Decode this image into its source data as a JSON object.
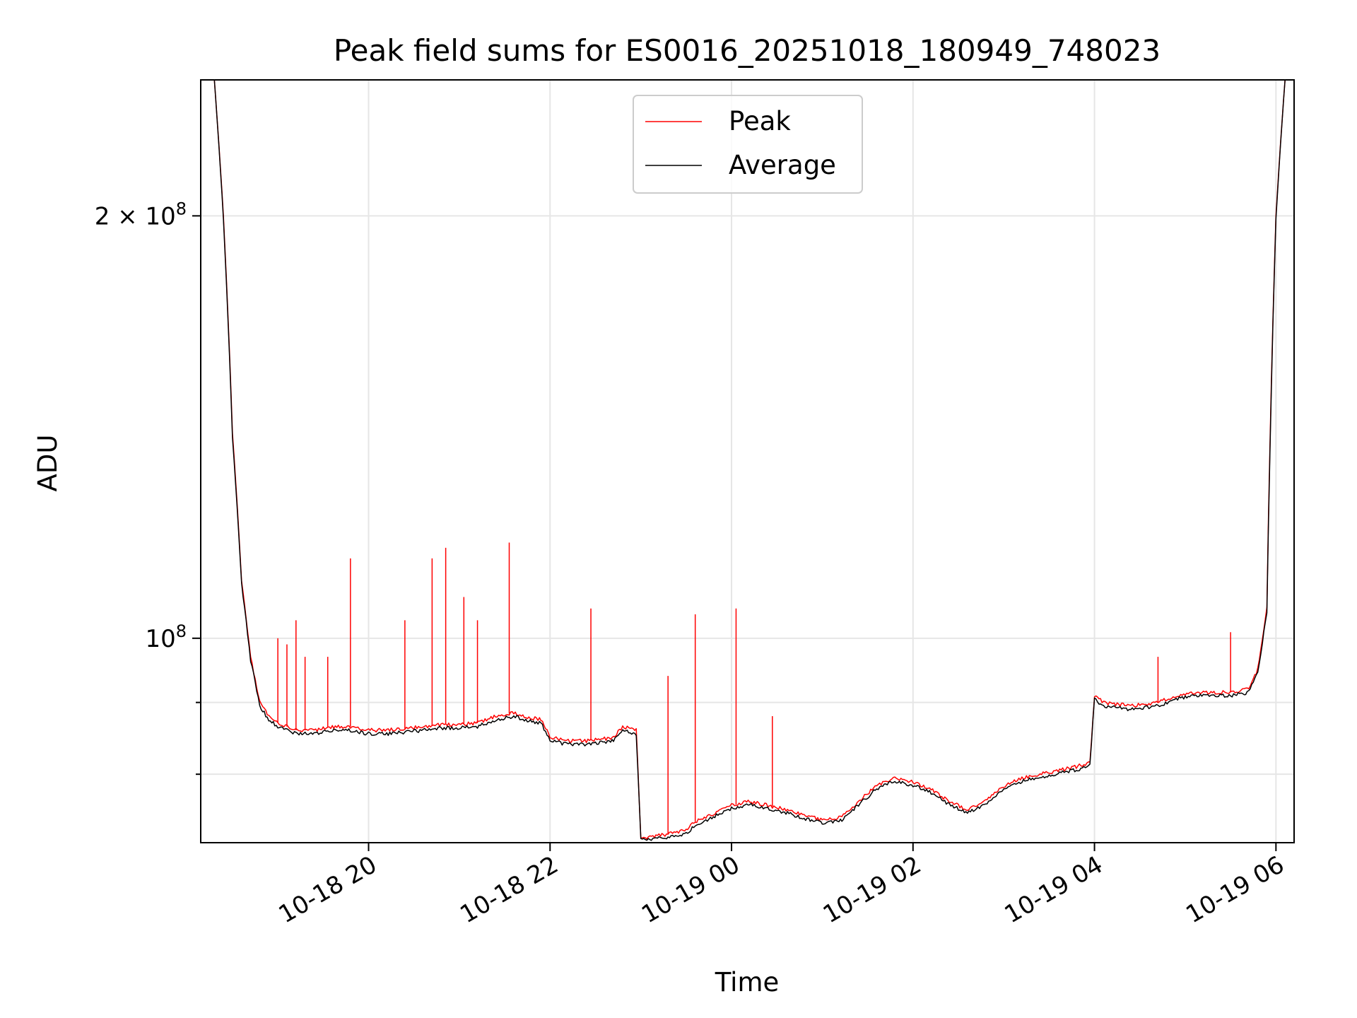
{
  "chart_data": {
    "type": "line",
    "title": "Peak field sums for ES0016_20251018_180949_748023",
    "xlabel": "Time",
    "ylabel": "ADU",
    "yscale": "log",
    "ylim": [
      71500000,
      250000000
    ],
    "xlim_hours": [
      18.15,
      30.2
    ],
    "x_ticks": [
      {
        "label": "10-18 20",
        "hour": 20
      },
      {
        "label": "10-18 22",
        "hour": 22
      },
      {
        "label": "10-19 00",
        "hour": 24
      },
      {
        "label": "10-19 02",
        "hour": 26
      },
      {
        "label": "10-19 04",
        "hour": 28
      },
      {
        "label": "10-19 06",
        "hour": 30
      }
    ],
    "y_ticks": [
      {
        "value": 200000000,
        "label_base": "2 × 10",
        "label_exp": "8"
      },
      {
        "value": 100000000,
        "label_base": "10",
        "label_exp": "8"
      }
    ],
    "y_minor_ticks": [
      80000000,
      90000000
    ],
    "legend": {
      "position": "upper center",
      "entries": [
        {
          "name": "Peak",
          "color": "#ff0000"
        },
        {
          "name": "Average",
          "color": "#000000"
        }
      ]
    },
    "series": [
      {
        "name": "Peak",
        "color": "#ff0000",
        "x_hours": [
          18.15,
          18.3,
          18.4,
          18.5,
          18.6,
          18.7,
          18.8,
          18.9,
          19.0,
          19.1,
          19.2,
          19.4,
          19.6,
          19.8,
          20.0,
          20.2,
          20.4,
          20.6,
          20.8,
          21.0,
          21.2,
          21.4,
          21.6,
          21.7,
          21.9,
          22.0,
          22.2,
          22.4,
          22.6,
          22.7,
          22.8,
          22.95,
          23.0,
          23.1,
          23.3,
          23.5,
          23.6,
          23.8,
          24.0,
          24.2,
          24.4,
          24.6,
          24.8,
          25.0,
          25.2,
          25.4,
          25.6,
          25.8,
          26.0,
          26.2,
          26.4,
          26.6,
          26.8,
          27.0,
          27.2,
          27.4,
          27.6,
          27.8,
          27.95,
          28.0,
          28.1,
          28.4,
          28.7,
          28.9,
          29.1,
          29.3,
          29.5,
          29.7,
          29.8,
          29.9,
          30.0,
          30.1,
          30.2
        ],
        "values": [
          250000000,
          250000000,
          200000000,
          140000000,
          110000000,
          97000000,
          90000000,
          88000000,
          87000000,
          86500000,
          86000000,
          86000000,
          86500000,
          86500000,
          86000000,
          86000000,
          86200000,
          86500000,
          86800000,
          86800000,
          87000000,
          88000000,
          88500000,
          88000000,
          87500000,
          85000000,
          84500000,
          84500000,
          84800000,
          85000000,
          86500000,
          86000000,
          72000000,
          72200000,
          72500000,
          73000000,
          74000000,
          75000000,
          76000000,
          76500000,
          76000000,
          75500000,
          74800000,
          74200000,
          74500000,
          76500000,
          78500000,
          79500000,
          79000000,
          78000000,
          76500000,
          75500000,
          76500000,
          78500000,
          79500000,
          80000000,
          80500000,
          81000000,
          81500000,
          91000000,
          90000000,
          89500000,
          90000000,
          91000000,
          91500000,
          91500000,
          91500000,
          92000000,
          95000000,
          105000000,
          200000000,
          250000000,
          250000000
        ],
        "spikes": [
          [
            19.0,
            100000000
          ],
          [
            19.1,
            99000000
          ],
          [
            19.2,
            103000000
          ],
          [
            19.3,
            97000000
          ],
          [
            19.55,
            97000000
          ],
          [
            19.8,
            114000000
          ],
          [
            20.4,
            103000000
          ],
          [
            20.7,
            114000000
          ],
          [
            20.85,
            116000000
          ],
          [
            21.05,
            107000000
          ],
          [
            21.2,
            103000000
          ],
          [
            21.55,
            117000000
          ],
          [
            22.45,
            105000000
          ],
          [
            23.3,
            94000000
          ],
          [
            23.6,
            104000000
          ],
          [
            24.05,
            105000000
          ],
          [
            24.45,
            88000000
          ],
          [
            28.7,
            97000000
          ],
          [
            29.5,
            101000000
          ]
        ]
      },
      {
        "name": "Average",
        "color": "#000000",
        "x_hours": [
          18.15,
          18.3,
          18.4,
          18.5,
          18.6,
          18.7,
          18.8,
          18.9,
          19.0,
          19.1,
          19.2,
          19.4,
          19.6,
          19.8,
          20.0,
          20.2,
          20.4,
          20.6,
          20.8,
          21.0,
          21.2,
          21.4,
          21.6,
          21.7,
          21.9,
          22.0,
          22.2,
          22.4,
          22.6,
          22.7,
          22.8,
          22.95,
          23.0,
          23.1,
          23.3,
          23.5,
          23.6,
          23.8,
          24.0,
          24.2,
          24.4,
          24.6,
          24.8,
          25.0,
          25.2,
          25.4,
          25.6,
          25.8,
          26.0,
          26.2,
          26.4,
          26.6,
          26.8,
          27.0,
          27.2,
          27.4,
          27.6,
          27.8,
          27.95,
          28.0,
          28.1,
          28.4,
          28.7,
          28.9,
          29.1,
          29.3,
          29.5,
          29.7,
          29.8,
          29.9,
          30.0,
          30.1,
          30.2
        ],
        "values": [
          250000000,
          250000000,
          199000000,
          139000000,
          109500000,
          96500000,
          89500000,
          87500000,
          86500000,
          86000000,
          85500000,
          85500000,
          86000000,
          86000000,
          85500000,
          85500000,
          85700000,
          86000000,
          86300000,
          86300000,
          86500000,
          87500000,
          88000000,
          87500000,
          87000000,
          84500000,
          84000000,
          84000000,
          84300000,
          84500000,
          86000000,
          85500000,
          71800000,
          71900000,
          72100000,
          72600000,
          73600000,
          74600000,
          75600000,
          76100000,
          75600000,
          75100000,
          74400000,
          73900000,
          74100000,
          76100000,
          78100000,
          79100000,
          78600000,
          77600000,
          76100000,
          75100000,
          76100000,
          78100000,
          79100000,
          79600000,
          80100000,
          80600000,
          81100000,
          90500000,
          89500000,
          89000000,
          89500000,
          90500000,
          91000000,
          91000000,
          91000000,
          91500000,
          94500000,
          104000000,
          199000000,
          250000000,
          250000000
        ]
      }
    ]
  }
}
